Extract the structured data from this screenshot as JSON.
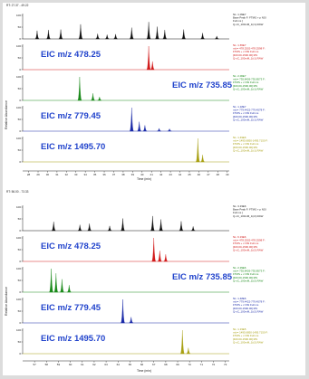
{
  "colors": {
    "tic": "#111111",
    "eic1": "#d11a1a",
    "eic2": "#1a8a1a",
    "eic3": "#1a2aa8",
    "eic4": "#a8a012",
    "label": "#2244cc"
  },
  "chart_data": [
    {
      "type": "line",
      "header": "RT: 27.37 - 49.22",
      "ylabel": "Relative Abundance",
      "xlabel": "Time (min)",
      "xlim": [
        27.37,
        49.22
      ],
      "x_ticks": [
        28,
        29,
        30,
        31,
        32,
        33,
        34,
        35,
        36,
        37,
        38,
        39,
        40,
        41,
        42,
        43,
        44,
        45,
        46,
        47,
        48,
        49
      ],
      "y_ticks": [
        0,
        50,
        100
      ],
      "traces": [
        {
          "label": "",
          "color_key": "tic",
          "info": [
            "NL: 1.09E7",
            "Base Peak F: FTMS + p NSI",
            "Full ms [",
            "Q-nC_100mM_1(r1).RAW"
          ],
          "peaks": [
            [
              28.9,
              0.35
            ],
            [
              30.1,
              0.38
            ],
            [
              31.4,
              0.4
            ],
            [
              33.5,
              0.62
            ],
            [
              35.3,
              0.22
            ],
            [
              36.3,
              0.18
            ],
            [
              37.2,
              0.2
            ],
            [
              38.9,
              0.48
            ],
            [
              40.7,
              0.72
            ],
            [
              41.6,
              0.52
            ],
            [
              42.4,
              0.38
            ],
            [
              44.4,
              0.4
            ],
            [
              46.4,
              0.25
            ],
            [
              47.9,
              0.12
            ]
          ]
        },
        {
          "label": "EIC m/z 478.25",
          "color_key": "eic1",
          "info": [
            "NL: 1.65E7",
            "m/z= 478.2502-478.2598 F:",
            "FTMS + c NSI Full ms",
            "[400.00-1500.00] MS",
            "Q-nC_100mM_1(r1).RAW"
          ],
          "peaks": [
            [
              40.7,
              1.0
            ],
            [
              41.1,
              0.35
            ]
          ]
        },
        {
          "label": "EIC m/z 735.85",
          "color_key": "eic2",
          "info": [
            "NL: 2.06E7",
            "m/z= 735.8426-735.8573 F:",
            "FTMS + c NSI Full ms",
            "[400.00-1500.00] MS",
            "Q-nC_100mM_1(r1).RAW"
          ],
          "peaks": [
            [
              33.4,
              1.0
            ],
            [
              34.8,
              0.3
            ],
            [
              35.5,
              0.15
            ]
          ]
        },
        {
          "label": "EIC m/z 779.45",
          "color_key": "eic3",
          "info": [
            "NL: 1.18E7",
            "m/z= 779.4422-779.4578 F:",
            "FTMS + c NSI Full ms",
            "[400.00-1500.00] MS",
            "Q-nC_100mM_1(r1).RAW"
          ],
          "peaks": [
            [
              38.9,
              1.0
            ],
            [
              39.7,
              0.4
            ],
            [
              40.3,
              0.25
            ],
            [
              41.8,
              0.12
            ],
            [
              42.9,
              0.1
            ]
          ]
        },
        {
          "label": "EIC m/z 1495.70",
          "color_key": "eic4",
          "info": [
            "NL: 1.49E6",
            "m/z= 1495.6850-1495.7150 F:",
            "FTMS + c NSI Full ms",
            "[400.00-1500.00] MS",
            "Q-nC_100mM_1(r1).RAW"
          ],
          "peaks": [
            [
              45.9,
              1.0
            ],
            [
              46.4,
              0.3
            ]
          ]
        }
      ]
    },
    {
      "type": "line",
      "header": "RT: 56.00 - 73.33",
      "ylabel": "Relative Abundance",
      "xlabel": "Time (min)",
      "xlim": [
        56.0,
        73.33
      ],
      "x_ticks": [
        57,
        58,
        59,
        60,
        61,
        62,
        63,
        64,
        65,
        66,
        67,
        68,
        69,
        70,
        71,
        72,
        73
      ],
      "y_ticks": [
        0,
        50,
        100
      ],
      "traces": [
        {
          "label": "",
          "color_key": "tic",
          "info": [
            "NL: 3.33E6",
            "Base Peak F: FTMS + p NSI",
            "Full ms [",
            "Q-nC_100mM_1(r2).RAW"
          ],
          "peaks": [
            [
              58.6,
              0.38
            ],
            [
              60.8,
              0.25
            ],
            [
              61.6,
              0.3
            ],
            [
              63.3,
              0.2
            ],
            [
              64.4,
              0.52
            ],
            [
              66.9,
              0.62
            ],
            [
              67.6,
              0.48
            ],
            [
              69.3,
              0.4
            ],
            [
              70.3,
              0.18
            ]
          ]
        },
        {
          "label": "EIC m/z 478.25",
          "color_key": "eic1",
          "info": [
            "NL: 6.33E6",
            "m/z= 478.2502-478.2598 F:",
            "FTMS + c NSI Full ms",
            "[400.00-1500.00] MS",
            "Q-nC_100mM_1(r2).RAW"
          ],
          "peaks": [
            [
              67.0,
              1.0
            ],
            [
              67.5,
              0.45
            ],
            [
              68.0,
              0.3
            ]
          ]
        },
        {
          "label": "EIC m/z 735.85",
          "color_key": "eic2",
          "info": [
            "NL: 2.39E6",
            "m/z= 735.8426-735.8573 F:",
            "FTMS + c NSI Full ms",
            "[400.00-1500.00] MS",
            "Q-nC_100mM_1(r2).RAW"
          ],
          "peaks": [
            [
              58.4,
              1.0
            ],
            [
              58.8,
              0.8
            ],
            [
              59.3,
              0.55
            ],
            [
              59.9,
              0.3
            ]
          ]
        },
        {
          "label": "EIC m/z 779.45",
          "color_key": "eic3",
          "info": [
            "NL: 1.48E6",
            "m/z= 779.4422-779.4578 F:",
            "FTMS + c NSI Full ms",
            "[400.00-1500.00] MS",
            "Q-nC_100mM_1(r2).RAW"
          ],
          "peaks": [
            [
              64.4,
              1.0
            ],
            [
              65.1,
              0.25
            ]
          ]
        },
        {
          "label": "EIC m/z 1495.70",
          "color_key": "eic4",
          "info": [
            "NL: 1.33E5",
            "m/z= 1495.6850-1495.7150 F:",
            "FTMS + c NSI Full ms",
            "[400.00-1500.00] MS",
            "Q-nC_100mM_1(r2).RAW"
          ],
          "peaks": [
            [
              69.4,
              1.0
            ],
            [
              69.9,
              0.25
            ]
          ]
        }
      ]
    }
  ]
}
